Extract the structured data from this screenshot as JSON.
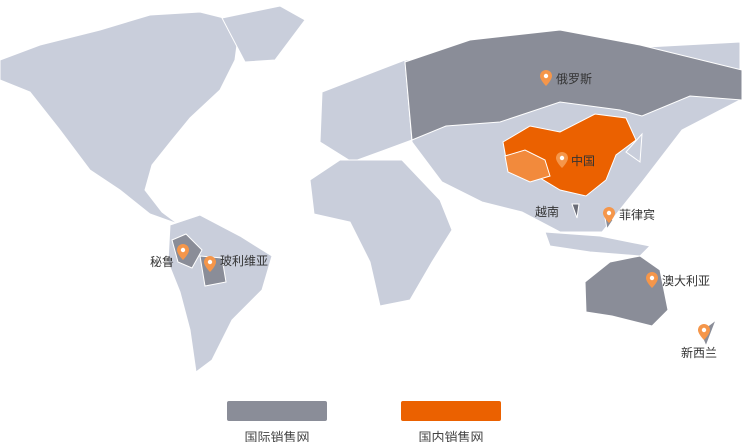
{
  "colors": {
    "land": "#c9cedb",
    "international": "#8a8d98",
    "domestic": "#eb6100",
    "domestic_light": "#f28a3c",
    "pin": "#f5964a"
  },
  "markers": [
    {
      "name": "俄罗斯",
      "icon": "map-pin-icon"
    },
    {
      "name": "中国",
      "icon": "map-pin-icon"
    },
    {
      "name": "越南",
      "icon": ""
    },
    {
      "name": "菲律宾",
      "icon": "map-pin-icon"
    },
    {
      "name": "澳大利亚",
      "icon": "map-pin-icon"
    },
    {
      "name": "新西兰",
      "icon": "map-pin-icon"
    },
    {
      "name": "秘鲁",
      "icon": "map-pin-icon"
    },
    {
      "name": "玻利维亚",
      "icon": "map-pin-icon"
    }
  ],
  "legend": [
    {
      "label": "国际销售网",
      "color": "#8a8d98"
    },
    {
      "label": "国内销售网",
      "color": "#eb6100"
    }
  ]
}
